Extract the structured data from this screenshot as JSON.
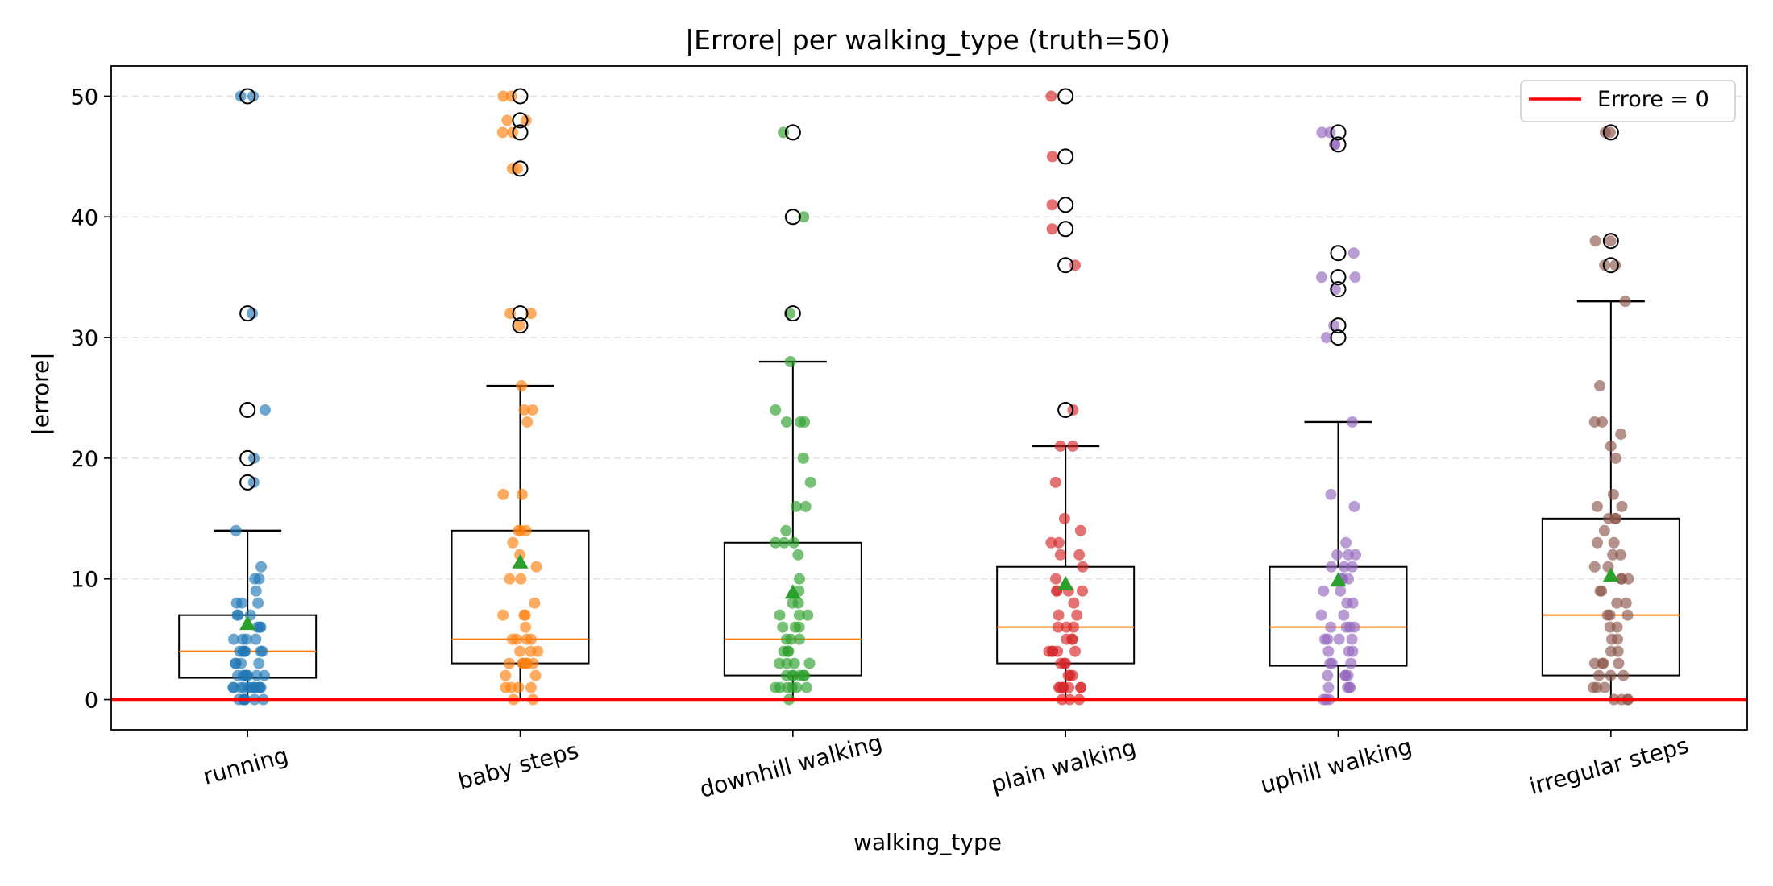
{
  "chart_data": {
    "type": "box",
    "title": "|Errore| per walking_type (truth=50)",
    "xlabel": "walking_type",
    "ylabel": "|errore|",
    "ylim": [
      -2.5,
      52.5
    ],
    "yticks": [
      0,
      10,
      20,
      30,
      40,
      50
    ],
    "grid": "y-dashed",
    "legend": {
      "position": "top-right",
      "entries": [
        {
          "label": "Errore = 0",
          "color": "#ff0000"
        }
      ]
    },
    "reference_line": {
      "y": 0,
      "color": "#ff0000"
    },
    "categories": [
      "running",
      "baby steps",
      "downhill walking",
      "plain walking",
      "uphill walking",
      "irregular steps"
    ],
    "colors": [
      "#1f77b4",
      "#ff7f0e",
      "#2ca02c",
      "#d62728",
      "#9467bd",
      "#8c564b"
    ],
    "mean_marker_color": "#2ca02c",
    "median_color": "#ff7f0e",
    "boxes": [
      {
        "category": "running",
        "whisker_low": 0,
        "q1": 1.8,
        "median": 4,
        "q3": 7,
        "whisker_high": 14,
        "mean": 6.3,
        "outliers": [
          50,
          32,
          24,
          20,
          18
        ]
      },
      {
        "category": "baby steps",
        "whisker_low": 0,
        "q1": 3,
        "median": 5,
        "q3": 14,
        "whisker_high": 26,
        "mean": 11.4,
        "outliers": [
          50,
          48,
          47,
          44,
          32,
          31
        ]
      },
      {
        "category": "downhill walking",
        "whisker_low": 0,
        "q1": 2,
        "median": 5,
        "q3": 13,
        "whisker_high": 28,
        "mean": 8.9,
        "outliers": [
          47,
          40,
          32
        ]
      },
      {
        "category": "plain walking",
        "whisker_low": 0,
        "q1": 3,
        "median": 6,
        "q3": 11,
        "whisker_high": 21,
        "mean": 9.6,
        "outliers": [
          50,
          45,
          41,
          39,
          36,
          24
        ]
      },
      {
        "category": "uphill walking",
        "whisker_low": 0,
        "q1": 2.8,
        "median": 6,
        "q3": 11,
        "whisker_high": 23,
        "mean": 9.9,
        "outliers": [
          47,
          46,
          37,
          35,
          34,
          31,
          30
        ]
      },
      {
        "category": "irregular steps",
        "whisker_low": 0,
        "q1": 2,
        "median": 7,
        "q3": 15,
        "whisker_high": 33,
        "mean": 10.3,
        "outliers": [
          47,
          38,
          36
        ]
      }
    ],
    "points": [
      {
        "category": "running",
        "values": [
          50,
          50,
          32,
          24,
          20,
          18,
          14,
          11,
          10,
          10,
          9,
          8,
          8,
          8,
          7,
          7,
          7,
          6,
          6,
          6,
          5,
          5,
          5,
          5,
          4,
          4,
          4,
          4,
          4,
          4,
          3,
          3,
          3,
          3,
          2,
          2,
          2,
          2,
          2,
          2,
          2,
          1,
          1,
          1,
          1,
          1,
          1,
          1,
          1,
          1,
          1,
          1,
          0,
          0,
          0,
          0,
          0,
          0,
          0
        ]
      },
      {
        "category": "baby steps",
        "values": [
          50,
          50,
          48,
          48,
          47,
          47,
          44,
          44,
          32,
          32,
          31,
          26,
          24,
          24,
          23,
          17,
          17,
          14,
          14,
          14,
          13,
          12,
          11,
          10,
          10,
          8,
          7,
          7,
          7,
          6,
          5,
          5,
          5,
          5,
          4,
          4,
          4,
          3,
          3,
          3,
          3,
          3,
          3,
          2,
          2,
          1,
          1,
          1,
          1,
          0,
          0
        ]
      },
      {
        "category": "downhill walking",
        "values": [
          47,
          40,
          32,
          28,
          24,
          23,
          23,
          23,
          20,
          18,
          16,
          16,
          14,
          13,
          13,
          13,
          12,
          10,
          9,
          8,
          8,
          7,
          7,
          7,
          6,
          6,
          6,
          5,
          5,
          5,
          4,
          4,
          4,
          3,
          3,
          3,
          3,
          2,
          2,
          2,
          2,
          2,
          2,
          1,
          1,
          1,
          1,
          1,
          1,
          0
        ]
      },
      {
        "category": "plain walking",
        "values": [
          50,
          45,
          41,
          39,
          36,
          24,
          21,
          21,
          18,
          15,
          14,
          13,
          13,
          12,
          12,
          11,
          10,
          9,
          9,
          9,
          9,
          8,
          7,
          7,
          6,
          6,
          6,
          5,
          5,
          5,
          4,
          4,
          4,
          4,
          4,
          3,
          3,
          3,
          2,
          2,
          2,
          1,
          1,
          1,
          1,
          1,
          1,
          1,
          0,
          0,
          0
        ]
      },
      {
        "category": "uphill walking",
        "values": [
          47,
          47,
          46,
          46,
          37,
          35,
          35,
          34,
          31,
          30,
          23,
          17,
          16,
          13,
          12,
          12,
          12,
          11,
          11,
          11,
          10,
          10,
          10,
          9,
          9,
          8,
          8,
          7,
          7,
          6,
          6,
          6,
          6,
          5,
          5,
          5,
          5,
          4,
          4,
          4,
          3,
          3,
          3,
          2,
          2,
          2,
          2,
          1,
          1,
          1,
          1,
          0,
          0,
          0
        ]
      },
      {
        "category": "irregular steps",
        "values": [
          47,
          47,
          38,
          38,
          36,
          36,
          33,
          26,
          23,
          23,
          22,
          21,
          20,
          17,
          16,
          16,
          15,
          15,
          15,
          14,
          13,
          13,
          12,
          12,
          11,
          11,
          10,
          10,
          10,
          9,
          9,
          8,
          8,
          7,
          7,
          7,
          6,
          6,
          5,
          5,
          4,
          4,
          3,
          3,
          3,
          3,
          2,
          2,
          2,
          1,
          1,
          1,
          0,
          0,
          0,
          0
        ]
      }
    ]
  }
}
